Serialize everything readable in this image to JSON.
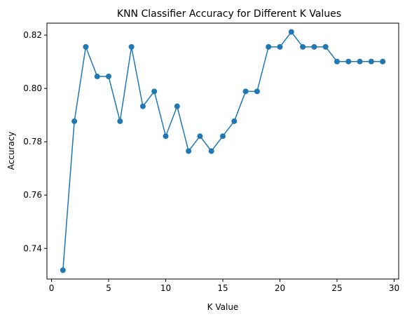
{
  "chart_data": {
    "type": "line",
    "title": "KNN Classifier Accuracy for Different K Values",
    "xlabel": "K Value",
    "ylabel": "Accuracy",
    "xlim": [
      -0.4,
      30.4
    ],
    "ylim": [
      0.7285,
      0.8245
    ],
    "xticks": [
      0,
      5,
      10,
      15,
      20,
      25,
      30
    ],
    "yticks": [
      0.74,
      0.76,
      0.78,
      0.8,
      0.82
    ],
    "ytick_labels": [
      "0.74",
      "0.76",
      "0.78",
      "0.80",
      "0.82"
    ],
    "grid": false,
    "series": [
      {
        "color": "#1f77b4",
        "marker": "circle",
        "x": [
          1,
          2,
          3,
          4,
          5,
          6,
          7,
          8,
          9,
          10,
          11,
          12,
          13,
          14,
          15,
          16,
          17,
          18,
          19,
          20,
          21,
          22,
          23,
          24,
          25,
          26,
          27,
          28,
          29
        ],
        "y": [
          0.7318,
          0.7877,
          0.8156,
          0.8045,
          0.8045,
          0.7877,
          0.8156,
          0.7933,
          0.7989,
          0.7821,
          0.7933,
          0.7765,
          0.7821,
          0.7765,
          0.7821,
          0.7877,
          0.7989,
          0.7989,
          0.8156,
          0.8156,
          0.8212,
          0.8156,
          0.8156,
          0.8156,
          0.8101,
          0.8101,
          0.8101,
          0.8101,
          0.8101
        ]
      }
    ]
  }
}
